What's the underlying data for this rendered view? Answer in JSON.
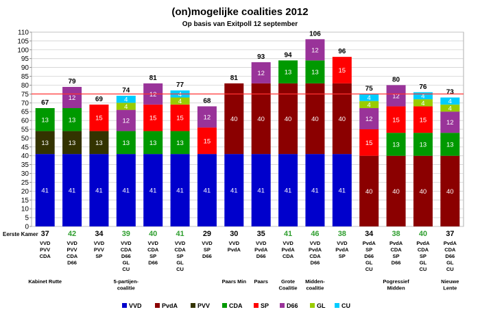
{
  "chart_data": {
    "type": "bar",
    "stacked": true,
    "title": "(on)mogelijke coalities 2012",
    "subtitle": "Op basis van Exitpoll 12 september",
    "ylim": [
      0,
      110
    ],
    "yticks": [
      0,
      5,
      10,
      15,
      20,
      25,
      30,
      35,
      40,
      45,
      50,
      55,
      60,
      65,
      70,
      75,
      80,
      85,
      90,
      95,
      100,
      105,
      110
    ],
    "threshold": 75,
    "grid": true,
    "legend_position": "bottom",
    "eerste_kamer_label": "Eerste Kamer",
    "parties": [
      {
        "name": "VVD",
        "color": "#0000cc"
      },
      {
        "name": "PvdA",
        "color": "#8b0000"
      },
      {
        "name": "PVV",
        "color": "#333300"
      },
      {
        "name": "CDA",
        "color": "#009900"
      },
      {
        "name": "SP",
        "color": "#ff0000"
      },
      {
        "name": "D66",
        "color": "#993399"
      },
      {
        "name": "GL",
        "color": "#99cc00"
      },
      {
        "name": "CU",
        "color": "#00ccff"
      }
    ],
    "coalitions": [
      {
        "stack": [
          [
            "VVD",
            41
          ],
          [
            "PVV",
            13
          ],
          [
            "CDA",
            13
          ]
        ],
        "total": 67,
        "eerste_kamer": 37,
        "majority": false,
        "parties_label": [
          "VVD",
          "PVV",
          "CDA"
        ],
        "name": [
          "Kabinet Rutte"
        ]
      },
      {
        "stack": [
          [
            "VVD",
            41
          ],
          [
            "PVV",
            13
          ],
          [
            "CDA",
            13
          ],
          [
            "D66",
            12
          ]
        ],
        "total": 79,
        "eerste_kamer": 42,
        "majority": true,
        "parties_label": [
          "VVD",
          "PVV",
          "CDA",
          "D66"
        ],
        "name": []
      },
      {
        "stack": [
          [
            "VVD",
            41
          ],
          [
            "PVV",
            13
          ],
          [
            "SP",
            15
          ]
        ],
        "total": 69,
        "eerste_kamer": 34,
        "majority": false,
        "parties_label": [
          "VVD",
          "PVV",
          "SP"
        ],
        "name": []
      },
      {
        "stack": [
          [
            "VVD",
            41
          ],
          [
            "CDA",
            13
          ],
          [
            "D66",
            12
          ],
          [
            "GL",
            4
          ],
          [
            "CU",
            4
          ]
        ],
        "total": 74,
        "eerste_kamer": 39,
        "majority": true,
        "parties_label": [
          "VVD",
          "CDA",
          "D66",
          "GL",
          "CU"
        ],
        "name": [
          "5-partijen-",
          "coalitie"
        ]
      },
      {
        "stack": [
          [
            "VVD",
            41
          ],
          [
            "CDA",
            13
          ],
          [
            "SP",
            15
          ],
          [
            "D66",
            12
          ]
        ],
        "total": 81,
        "eerste_kamer": 40,
        "majority": true,
        "parties_label": [
          "VVD",
          "CDA",
          "SP",
          "D66"
        ],
        "name": []
      },
      {
        "stack": [
          [
            "VVD",
            41
          ],
          [
            "CDA",
            13
          ],
          [
            "SP",
            15
          ],
          [
            "GL",
            4
          ],
          [
            "CU",
            4
          ]
        ],
        "total": 77,
        "eerste_kamer": 41,
        "majority": true,
        "parties_label": [
          "VVD",
          "CDA",
          "SP",
          "GL",
          "CU"
        ],
        "name": []
      },
      {
        "stack": [
          [
            "VVD",
            41
          ],
          [
            "SP",
            15
          ],
          [
            "D66",
            12
          ]
        ],
        "total": 68,
        "eerste_kamer": 29,
        "majority": false,
        "parties_label": [
          "VVD",
          "SP",
          "D66"
        ],
        "name": []
      },
      {
        "stack": [
          [
            "VVD",
            41
          ],
          [
            "PvdA",
            40
          ]
        ],
        "total": 81,
        "eerste_kamer": 30,
        "majority": false,
        "parties_label": [
          "VVD",
          "PvdA"
        ],
        "name": [
          "Paars Min"
        ]
      },
      {
        "stack": [
          [
            "VVD",
            41
          ],
          [
            "PvdA",
            40
          ],
          [
            "D66",
            12
          ]
        ],
        "total": 93,
        "eerste_kamer": 35,
        "majority": false,
        "parties_label": [
          "VVD",
          "PvdA",
          "D66"
        ],
        "name": [
          "Paars"
        ]
      },
      {
        "stack": [
          [
            "VVD",
            41
          ],
          [
            "PvdA",
            40
          ],
          [
            "CDA",
            13
          ]
        ],
        "total": 94,
        "eerste_kamer": 41,
        "majority": true,
        "parties_label": [
          "VVD",
          "PvdA",
          "CDA"
        ],
        "name": [
          "Grote",
          "Coalitie"
        ]
      },
      {
        "stack": [
          [
            "VVD",
            41
          ],
          [
            "PvdA",
            40
          ],
          [
            "CDA",
            13
          ],
          [
            "D66",
            12
          ]
        ],
        "total": 106,
        "eerste_kamer": 46,
        "majority": true,
        "parties_label": [
          "VVD",
          "PvdA",
          "CDA",
          "D66"
        ],
        "name": [
          "Midden-",
          "coalitie"
        ]
      },
      {
        "stack": [
          [
            "VVD",
            41
          ],
          [
            "PvdA",
            40
          ],
          [
            "SP",
            15
          ]
        ],
        "total": 96,
        "eerste_kamer": 38,
        "majority": true,
        "parties_label": [
          "VVD",
          "PvdA",
          "SP"
        ],
        "name": []
      },
      {
        "stack": [
          [
            "PvdA",
            40
          ],
          [
            "SP",
            15
          ],
          [
            "D66",
            12
          ],
          [
            "GL",
            4
          ],
          [
            "CU",
            4
          ]
        ],
        "total": 75,
        "eerste_kamer": 34,
        "majority": false,
        "parties_label": [
          "PvdA",
          "SP",
          "D66",
          "GL",
          "CU"
        ],
        "name": []
      },
      {
        "stack": [
          [
            "PvdA",
            40
          ],
          [
            "CDA",
            13
          ],
          [
            "SP",
            15
          ],
          [
            "D66",
            12
          ]
        ],
        "total": 80,
        "eerste_kamer": 38,
        "majority": true,
        "parties_label": [
          "PvdA",
          "CDA",
          "SP",
          "D66"
        ],
        "name": [
          "Pogressief",
          "Midden"
        ]
      },
      {
        "stack": [
          [
            "PvdA",
            40
          ],
          [
            "CDA",
            13
          ],
          [
            "SP",
            15
          ],
          [
            "GL",
            4
          ],
          [
            "CU",
            4
          ]
        ],
        "total": 76,
        "eerste_kamer": 40,
        "majority": true,
        "parties_label": [
          "PvdA",
          "CDA",
          "SP",
          "GL",
          "CU"
        ],
        "name": []
      },
      {
        "stack": [
          [
            "PvdA",
            40
          ],
          [
            "CDA",
            13
          ],
          [
            "D66",
            12
          ],
          [
            "GL",
            4
          ],
          [
            "CU",
            4
          ]
        ],
        "total": 73,
        "eerste_kamer": 37,
        "majority": false,
        "parties_label": [
          "PvdA",
          "CDA",
          "D66",
          "GL",
          "CU"
        ],
        "name": [
          "Nieuwe",
          "Lente"
        ]
      }
    ]
  }
}
